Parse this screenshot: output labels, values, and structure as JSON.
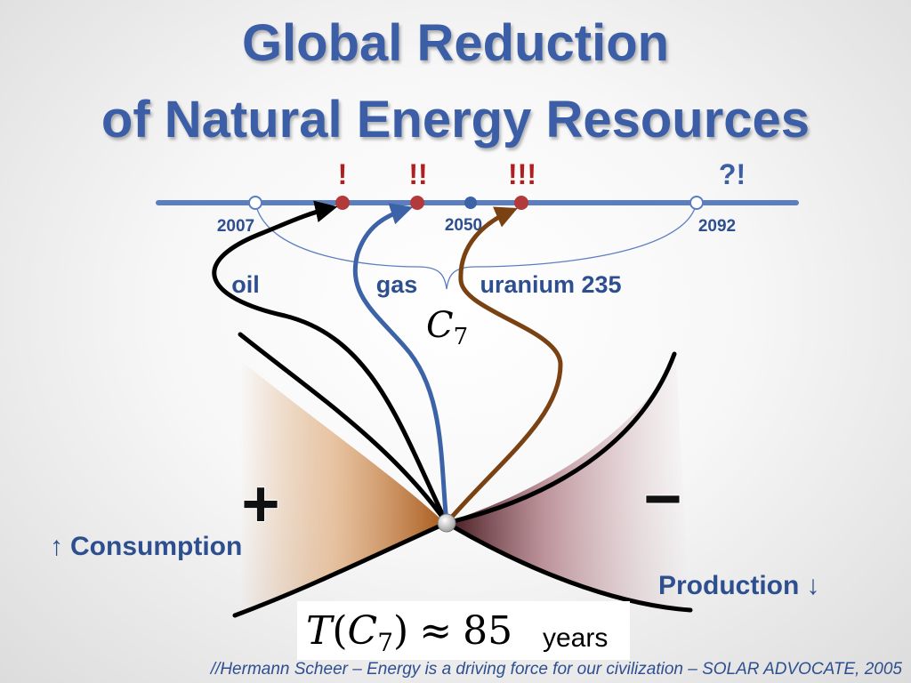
{
  "title_line1": "Global Reduction",
  "title_line2": "of Natural Energy Resources",
  "timeline": {
    "start_label": "2007",
    "mid_label": "2050",
    "end_label": "2092",
    "marks": [
      "!",
      "!!",
      "!!!",
      "?!"
    ]
  },
  "resources": [
    "oil",
    "gas",
    "uranium 235"
  ],
  "curve_label": {
    "letter": "C",
    "subscript": "7"
  },
  "consumption": {
    "arrow": "↑",
    "label": "Consumption",
    "sign": "+"
  },
  "production": {
    "arrow": "↓",
    "label": "Production",
    "sign": "−"
  },
  "formula": {
    "func": "T",
    "open": "(",
    "letter": "C",
    "subscript": "7",
    "close": ")",
    "approx": "≈",
    "value": "85",
    "unit": "years"
  },
  "citation": "//Hermann Scheer – Energy is a driving force for our civilization – SOLAR ADVOCATE, 2005",
  "colors": {
    "title": "#3b5ea6",
    "timeline": "#5b7ec0",
    "marks": "#b01e1e",
    "oil_arrow": "#000000",
    "gas_arrow": "#3c62a8",
    "uranium_arrow": "#7a4212",
    "consumption_fill": "#c97b35",
    "production_fill": "#7a3a40"
  }
}
